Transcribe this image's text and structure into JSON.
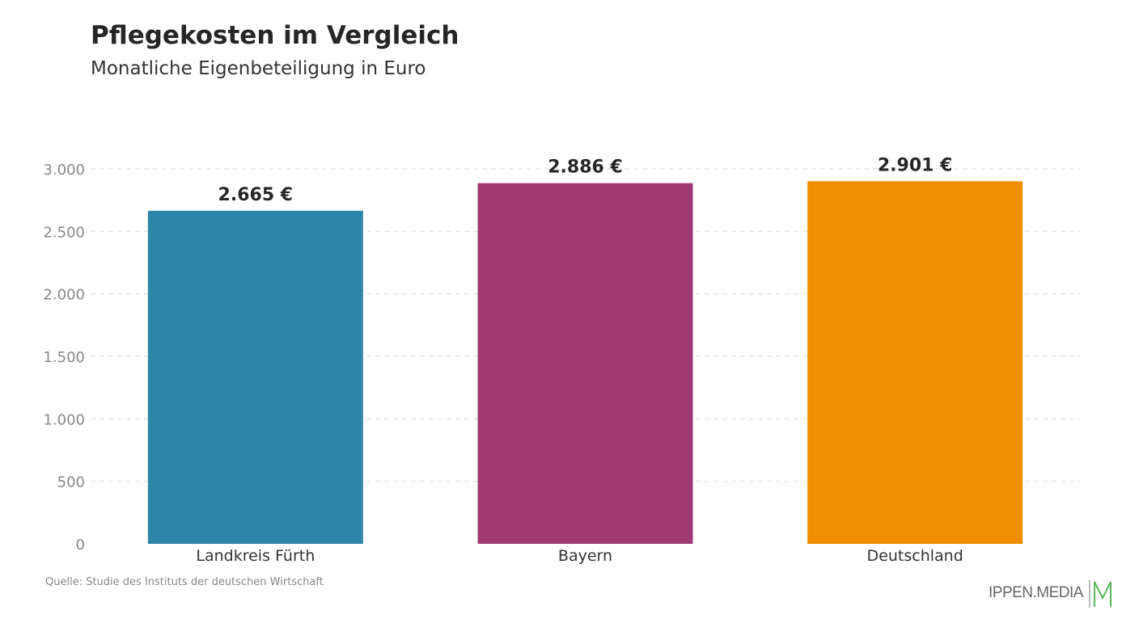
{
  "chart_data": {
    "type": "bar",
    "title": "Pflegekosten im Vergleich",
    "subtitle": "Monatliche Eigenbeteiligung in Euro",
    "categories": [
      "Landkreis Fürth",
      "Bayern",
      "Deutschland"
    ],
    "values": [
      2665,
      2886,
      2901
    ],
    "data_labels": [
      "2.665 €",
      "2.886 €",
      "2.901 €"
    ],
    "colors": [
      "#2e86a8",
      "#a13a72",
      "#f08e00"
    ],
    "ylim": [
      0,
      3000
    ],
    "yticks": [
      0,
      500,
      1000,
      1500,
      2000,
      2500,
      3000
    ],
    "ytick_labels": [
      "0",
      "500",
      "1.000",
      "1.500",
      "2.000",
      "2.500",
      "3.000"
    ],
    "grid": true,
    "xlabel": "",
    "ylabel": ""
  },
  "source": "Quelle: Studie des Instituts der deutschen Wirtschaft",
  "logo": {
    "text": "IPPEN.MEDIA",
    "color": "#5cb85c"
  }
}
